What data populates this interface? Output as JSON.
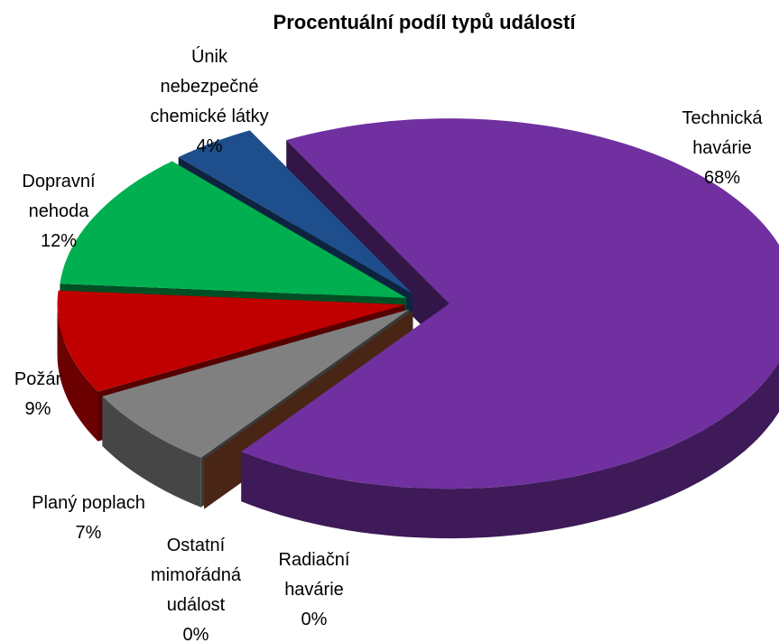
{
  "chart_data": {
    "type": "pie",
    "title": "Procentuální podíl typů událostí",
    "categories": [
      "Technická havárie",
      "Radiační havárie",
      "Ostatní mimořádná událost",
      "Planý poplach",
      "Požár",
      "Dopravní nehoda",
      "Únik nebezpečné chemické látky"
    ],
    "values": [
      68,
      0,
      0,
      7,
      9,
      12,
      4
    ],
    "value_labels": [
      "68%",
      "0%",
      "0%",
      "7%",
      "9%",
      "12%",
      "4%"
    ],
    "colors": [
      "#7030a0",
      "#c8960c",
      "#a0522d",
      "#808080",
      "#c00000",
      "#00b050",
      "#1f4e8c"
    ]
  }
}
